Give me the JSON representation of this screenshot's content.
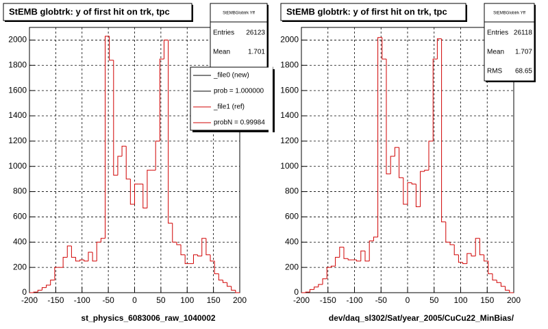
{
  "chart_data": [
    {
      "type": "histogram",
      "title": "StEMB globtrk: y of first hit on trk, tpc",
      "x_label": "st_physics_6083006_raw_1040002",
      "bins": [
        -200,
        -192,
        -184,
        -176,
        -168,
        -160,
        -152,
        -144,
        -136,
        -128,
        -120,
        -112,
        -104,
        -96,
        -88,
        -80,
        -72,
        -64,
        -56,
        -48,
        -40,
        -32,
        -24,
        -16,
        -8,
        0,
        8,
        16,
        24,
        32,
        40,
        48,
        56,
        64,
        72,
        80,
        88,
        96,
        104,
        112,
        120,
        128,
        136,
        144,
        152,
        160,
        168,
        176,
        184,
        192,
        200
      ],
      "series": [
        {
          "name": "_file1 (ref)",
          "color": "#d00000",
          "values": [
            0,
            5,
            20,
            40,
            60,
            100,
            200,
            200,
            280,
            370,
            280,
            250,
            260,
            250,
            320,
            250,
            400,
            430,
            2030,
            1840,
            930,
            1080,
            1160,
            900,
            700,
            860,
            860,
            670,
            970,
            970,
            1200,
            1850,
            2000,
            550,
            400,
            380,
            300,
            230,
            230,
            300,
            290,
            430,
            300,
            250,
            150,
            100,
            80,
            50,
            20,
            0
          ]
        }
      ],
      "xlim": [
        -200,
        200
      ],
      "xticks": [
        -200,
        -150,
        -100,
        -50,
        0,
        50,
        100,
        150,
        200
      ],
      "ylim": [
        0,
        2100
      ],
      "yticks": [
        0,
        200,
        400,
        600,
        800,
        1000,
        1200,
        1400,
        1600,
        1800,
        2000
      ],
      "grid": true,
      "stats_title": "StEMBGlobtrk Yff",
      "stats": [
        {
          "label": "Entries",
          "value": 26123
        },
        {
          "label": "Mean",
          "value": 1.701
        }
      ],
      "legend": [
        {
          "label": "_file0 (new)",
          "color": "#000000"
        },
        {
          "label": "prob = 1.000000",
          "color": "#000000"
        },
        {
          "label": "_file1 (ref)",
          "color": "#d00000"
        },
        {
          "label": "probN = 0.99984",
          "color": "#d00000"
        }
      ]
    },
    {
      "type": "histogram",
      "title": "StEMB globtrk: y of first hit on trk, tpc",
      "x_label": "dev/daq_sl302/Sat/year_2005/CuCu22_MinBias/",
      "bins": [
        -200,
        -192,
        -184,
        -176,
        -168,
        -160,
        -152,
        -144,
        -136,
        -128,
        -120,
        -112,
        -104,
        -96,
        -88,
        -80,
        -72,
        -64,
        -56,
        -48,
        -40,
        -32,
        -24,
        -16,
        -8,
        0,
        8,
        16,
        24,
        32,
        40,
        48,
        56,
        64,
        72,
        80,
        88,
        96,
        104,
        112,
        120,
        128,
        136,
        144,
        152,
        160,
        168,
        176,
        184,
        192,
        200
      ],
      "series": [
        {
          "name": "StEMBGlobtrk Yff",
          "color": "#d00000",
          "values": [
            0,
            5,
            25,
            45,
            65,
            110,
            200,
            210,
            280,
            360,
            270,
            260,
            260,
            250,
            330,
            250,
            410,
            440,
            2020,
            1850,
            940,
            1080,
            1150,
            910,
            700,
            870,
            860,
            680,
            960,
            970,
            1200,
            1850,
            2010,
            560,
            400,
            380,
            300,
            240,
            230,
            310,
            290,
            430,
            300,
            250,
            150,
            100,
            80,
            50,
            20,
            0
          ]
        }
      ],
      "xlim": [
        -200,
        200
      ],
      "xticks": [
        -200,
        -150,
        -100,
        -50,
        0,
        50,
        100,
        150,
        200
      ],
      "ylim": [
        0,
        2100
      ],
      "yticks": [
        0,
        200,
        400,
        600,
        800,
        1000,
        1200,
        1400,
        1600,
        1800,
        2000
      ],
      "grid": true,
      "stats_title": "StEMBGlobtrk Yff",
      "stats": [
        {
          "label": "Entries",
          "value": 26118
        },
        {
          "label": "Mean",
          "value": 1.707
        },
        {
          "label": "RMS",
          "value": 68.65
        }
      ]
    }
  ]
}
